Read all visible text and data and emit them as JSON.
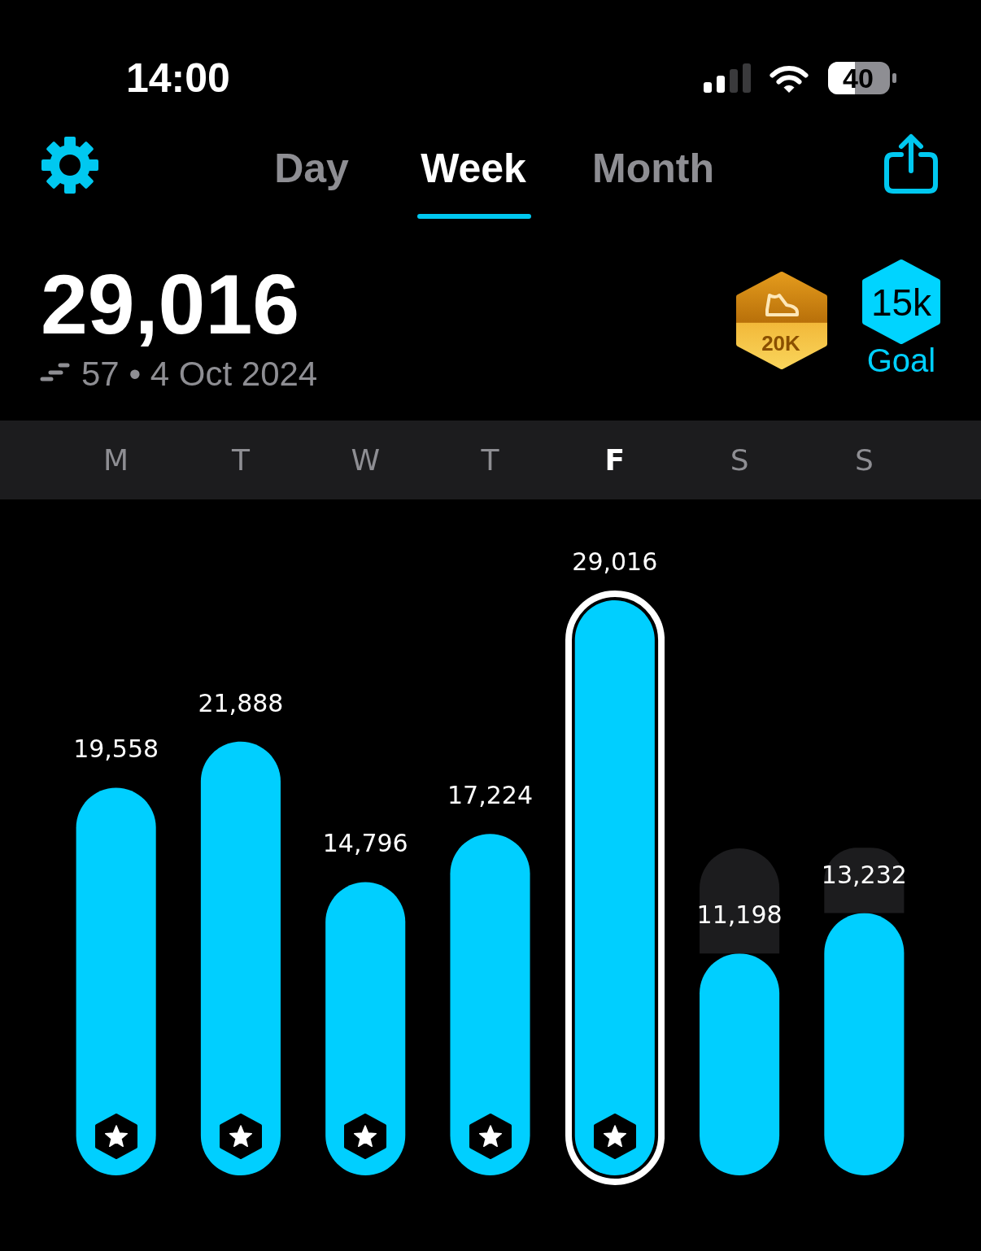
{
  "chart_data": {
    "type": "bar",
    "title": "29,016",
    "subtitle": "57 • 4 Oct 2024",
    "annotations": [
      "14:00",
      "40",
      "Day",
      "Week",
      "Month",
      "20K",
      "15k",
      "Goal"
    ],
    "categories": [
      "M",
      "T",
      "W",
      "T",
      "F",
      "S",
      "S"
    ],
    "series": [
      {
        "color": "#00cfff",
        "values": [
          19558,
          21888,
          14796,
          17224,
          29016,
          11198,
          13232
        ],
        "value_labels": [
          "19,558",
          "21,888",
          "14,796",
          "17,224",
          "29,016",
          "11,198",
          "13,232"
        ]
      },
      {
        "color": "#1c1c1e",
        "values": [
          null,
          null,
          null,
          null,
          null,
          5300,
          3300
        ]
      }
    ],
    "stacked": true,
    "tick_labels": "x"
  }
}
